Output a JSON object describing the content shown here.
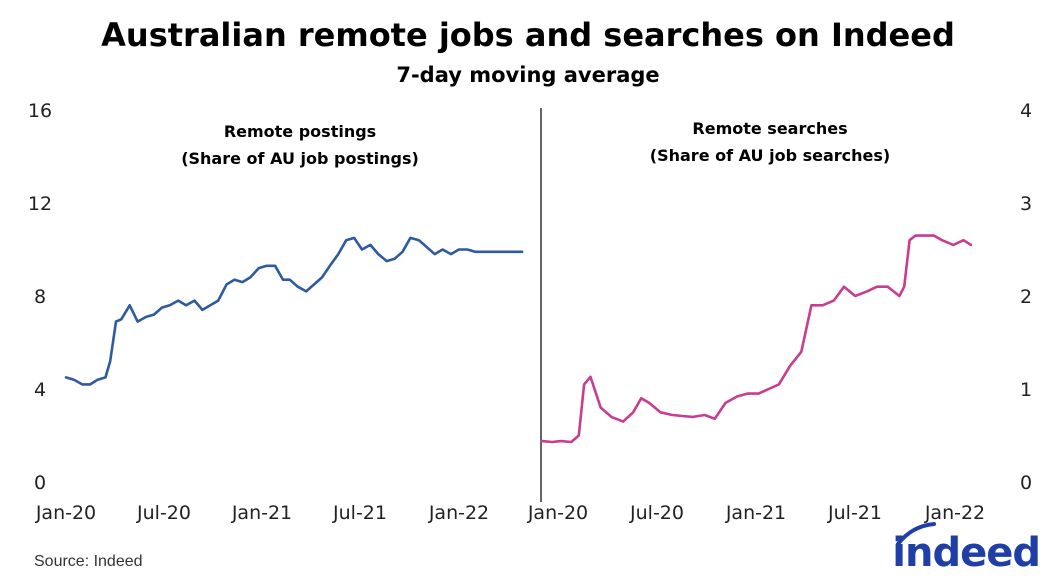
{
  "title": "Australian remote jobs and searches on Indeed",
  "subtitle": "7-day moving average",
  "source": "Source: Indeed",
  "logo_text": "indeed",
  "colors": {
    "postings": "#2e5aa0",
    "searches": "#c83d8f",
    "divider": "#000000",
    "logo": "#1f3fa6"
  },
  "chart_data": [
    {
      "type": "line",
      "annotation": [
        "Remote postings",
        "(Share of AU job postings)"
      ],
      "y_axis_side": "left",
      "ylim": [
        0,
        16
      ],
      "yticks": [
        "0",
        "4",
        "8",
        "12",
        "16"
      ],
      "xlim": [
        "2020-01-01",
        "2022-05-31"
      ],
      "xticks": [
        "Jan-20",
        "Jul-20",
        "Jan-21",
        "Jul-21",
        "Jan-22"
      ],
      "series": [
        {
          "x": [
            "2020-01-01",
            "2020-01-16",
            "2020-02-01",
            "2020-02-16",
            "2020-03-01",
            "2020-03-16",
            "2020-03-25",
            "2020-04-05",
            "2020-04-15",
            "2020-05-01",
            "2020-05-16",
            "2020-06-01",
            "2020-06-16",
            "2020-07-01",
            "2020-07-16",
            "2020-08-01",
            "2020-08-16",
            "2020-09-01",
            "2020-09-16",
            "2020-10-01",
            "2020-10-16",
            "2020-11-01",
            "2020-11-16",
            "2020-12-01",
            "2020-12-16",
            "2021-01-01",
            "2021-01-16",
            "2021-02-01",
            "2021-02-16",
            "2021-03-01",
            "2021-03-16",
            "2021-04-01",
            "2021-04-16",
            "2021-05-01",
            "2021-05-16",
            "2021-06-01",
            "2021-06-16",
            "2021-07-01",
            "2021-07-16",
            "2021-08-01",
            "2021-08-16",
            "2021-09-01",
            "2021-09-16",
            "2021-10-01",
            "2021-10-16",
            "2021-11-01",
            "2021-11-16",
            "2021-12-01",
            "2021-12-16",
            "2022-01-01",
            "2022-01-16",
            "2022-02-01",
            "2022-02-16",
            "2022-03-01",
            "2022-03-16",
            "2022-04-01",
            "2022-04-16",
            "2022-05-01",
            "2022-05-16"
          ],
          "values": [
            4.5,
            4.4,
            4.2,
            4.2,
            4.4,
            4.5,
            5.2,
            6.9,
            7.0,
            7.6,
            6.9,
            7.1,
            7.2,
            7.5,
            7.6,
            7.8,
            7.6,
            7.8,
            7.4,
            7.6,
            7.8,
            8.5,
            8.7,
            8.6,
            8.8,
            9.2,
            9.3,
            9.3,
            8.7,
            8.7,
            8.4,
            8.2,
            8.5,
            8.8,
            9.3,
            9.8,
            10.4,
            10.5,
            10.0,
            10.2,
            9.8,
            9.5,
            9.6,
            9.9,
            10.5,
            10.4,
            10.1,
            9.8,
            10.0,
            9.8,
            10.0,
            10.0,
            9.9,
            9.9,
            9.9,
            9.9,
            9.9,
            9.9,
            9.9
          ]
        }
      ]
    },
    {
      "type": "line",
      "annotation": [
        "Remote searches",
        "(Share of AU job searches)"
      ],
      "y_axis_side": "right",
      "ylim": [
        0,
        4
      ],
      "yticks": [
        "0",
        "1",
        "2",
        "3",
        "4"
      ],
      "xlim": [
        "2020-01-01",
        "2022-05-31"
      ],
      "xticks": [
        "Jan-20",
        "Jul-20",
        "Jan-21",
        "Jul-21",
        "Jan-22"
      ],
      "series": [
        {
          "x": [
            "2020-01-01",
            "2020-01-20",
            "2020-02-05",
            "2020-02-25",
            "2020-03-10",
            "2020-03-20",
            "2020-04-01",
            "2020-04-20",
            "2020-05-10",
            "2020-06-01",
            "2020-06-20",
            "2020-07-05",
            "2020-07-20",
            "2020-08-10",
            "2020-09-01",
            "2020-09-20",
            "2020-10-10",
            "2020-11-01",
            "2020-11-20",
            "2020-12-10",
            "2021-01-01",
            "2021-01-20",
            "2021-02-10",
            "2021-03-01",
            "2021-03-20",
            "2021-04-10",
            "2021-05-01",
            "2021-05-20",
            "2021-06-10",
            "2021-07-01",
            "2021-07-20",
            "2021-08-10",
            "2021-09-01",
            "2021-09-20",
            "2021-10-10",
            "2021-11-01",
            "2021-11-10",
            "2021-11-20",
            "2021-12-01",
            "2021-12-20",
            "2022-01-05",
            "2022-01-20",
            "2022-02-10",
            "2022-03-01",
            "2022-03-15"
          ],
          "values": [
            0.44,
            0.43,
            0.44,
            0.43,
            0.5,
            1.05,
            1.13,
            0.8,
            0.7,
            0.65,
            0.75,
            0.9,
            0.85,
            0.75,
            0.72,
            0.71,
            0.7,
            0.72,
            0.68,
            0.85,
            0.92,
            0.95,
            0.95,
            1.0,
            1.05,
            1.25,
            1.4,
            1.9,
            1.9,
            1.95,
            2.1,
            2.0,
            2.05,
            2.1,
            2.1,
            2.0,
            2.1,
            2.6,
            2.65,
            2.65,
            2.65,
            2.6,
            2.55,
            2.6,
            2.55
          ]
        }
      ]
    }
  ]
}
